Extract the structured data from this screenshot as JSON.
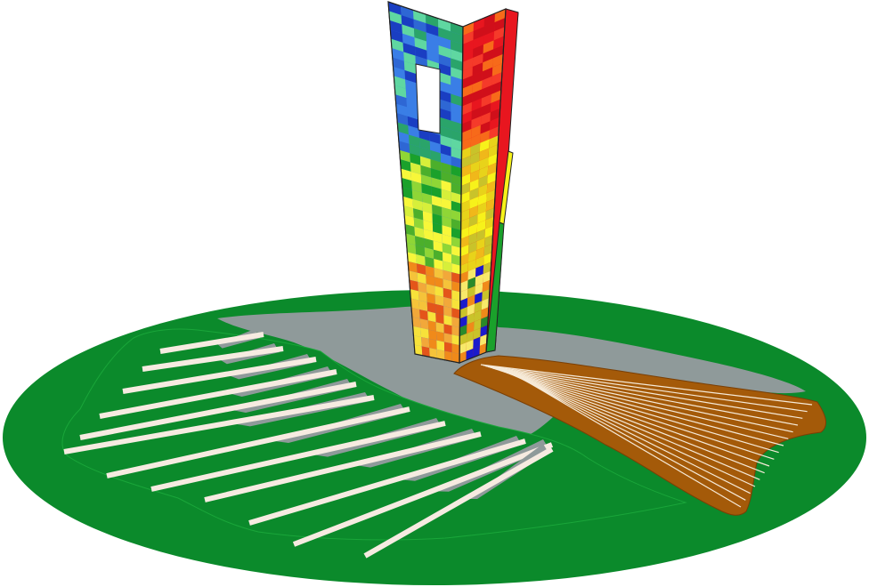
{
  "colors": {
    "background": "#ffffff",
    "lawn": "#0b8a2b",
    "lawn_edge": "#1aa63a",
    "plaza": "#8f9a9a",
    "wood_deck": "#a45a09",
    "deck_stripe": "#f6ead8",
    "lawn_stripe": "#f6ebe1",
    "stripe_shadow": "#8f9a9a",
    "outline": "#222222"
  },
  "tower_palette": {
    "left_face_top": [
      "#3a7ee6",
      "#2e67d4",
      "#5fd7a1",
      "#2aa46a",
      "#1a3ec2"
    ],
    "left_face_mid": [
      "#8fd636",
      "#4caf2b",
      "#d7ef3a",
      "#f7f73a",
      "#1aa12b"
    ],
    "left_face_low": [
      "#f5c33a",
      "#f08a1a",
      "#e4551a",
      "#f2a83a",
      "#f7e23a"
    ],
    "right_face_top": [
      "#e8161f",
      "#d00f1a",
      "#f53a2a",
      "#f76a1a"
    ],
    "right_face_mid": [
      "#f7f21a",
      "#c9c32a",
      "#e8d31a",
      "#f0b81a"
    ],
    "right_face_low": [
      "#1a1acc",
      "#2a8a2a",
      "#c9c32a",
      "#f7e96a",
      "#f08a1a"
    ]
  }
}
